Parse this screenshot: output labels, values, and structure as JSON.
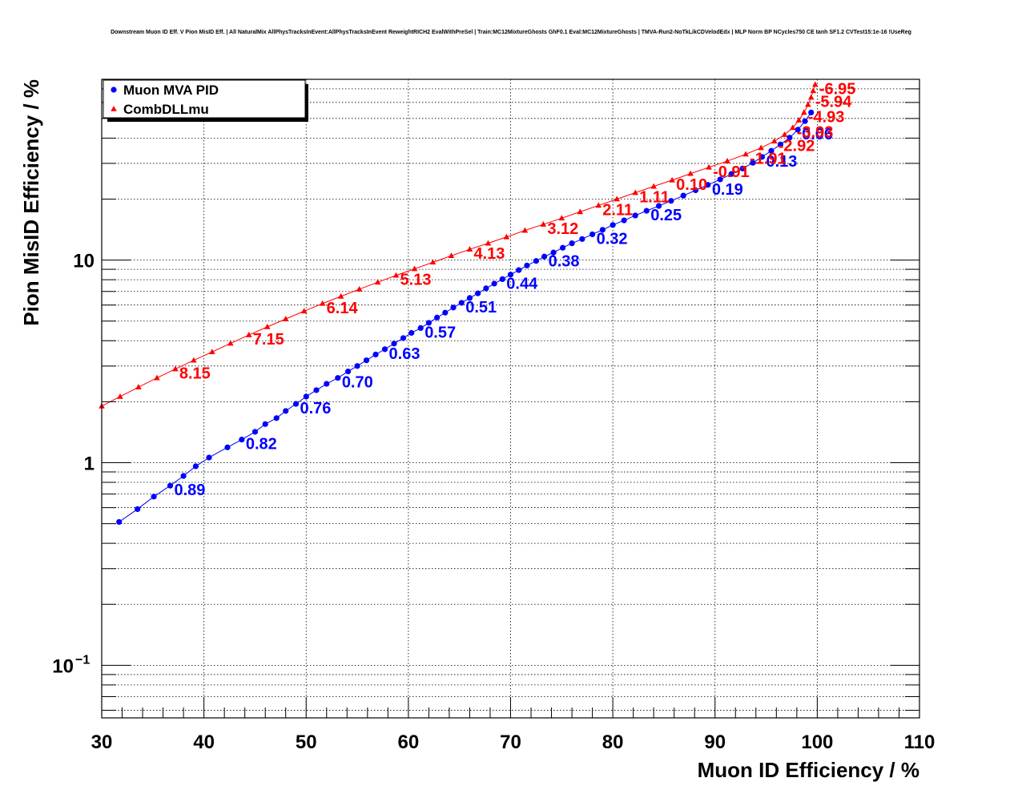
{
  "title": "Downstream Muon ID Eff. V Pion MisID Eff. | All NaturalMix AllPhysTracksInEvent:AllPhysTracksInEvent ReweightRICH2 EvalWithPreSel | Train:MC12MixtureGhosts GhF0.1 Eval:MC12MixtureGhosts | TMVA-Run2-NoTkLikCDVelodEdx | MLP Norm BP NCycles750 CE tanh SF1.2 CVTest15:1e-16 !UseReg",
  "colors": {
    "muon_mva": "#0000ff",
    "combdll": "#ff0000",
    "axis": "#000000"
  },
  "chart_data": {
    "type": "line",
    "xlabel": "Muon ID Efficiency / %",
    "ylabel": "Pion MisID Efficiency / %",
    "xlim": [
      30,
      110
    ],
    "ylim": [
      0.055,
      78
    ],
    "yscale": "log",
    "grid": true,
    "legend_position": "top-left",
    "x_ticks": [
      "30",
      "40",
      "50",
      "60",
      "70",
      "80",
      "90",
      "100",
      "110"
    ],
    "y_ticks": [
      {
        "value": 0.1,
        "base": "10",
        "exp": "−1"
      },
      {
        "value": 1,
        "base": "1",
        "exp": ""
      },
      {
        "value": 10,
        "base": "10",
        "exp": ""
      }
    ],
    "series": [
      {
        "name": "Muon MVA PID",
        "color": "#0000ff",
        "marker": "circle",
        "x": [
          31.7,
          33.5,
          35.1,
          36.7,
          38.0,
          39.2,
          40.5,
          42.3,
          43.7,
          45.0,
          46.0,
          47.1,
          48.0,
          49.0,
          50.0,
          51.0,
          52.0,
          53.1,
          54.1,
          55.0,
          55.9,
          56.8,
          57.7,
          58.6,
          59.5,
          60.3,
          61.2,
          62.0,
          62.8,
          63.6,
          64.4,
          65.2,
          66.0,
          66.8,
          67.6,
          68.4,
          69.2,
          70.0,
          70.8,
          71.6,
          72.5,
          73.3,
          74.2,
          75.1,
          76.0,
          77.0,
          78.0,
          79.0,
          80.0,
          81.1,
          82.2,
          83.3,
          84.5,
          85.7,
          86.9,
          88.1,
          89.3,
          90.5,
          91.6,
          92.7,
          93.7,
          94.6,
          95.5,
          96.4,
          97.3,
          98.1,
          98.8,
          99.4
        ],
        "y": [
          0.51,
          0.59,
          0.68,
          0.77,
          0.86,
          0.96,
          1.06,
          1.19,
          1.3,
          1.42,
          1.55,
          1.66,
          1.8,
          1.95,
          2.12,
          2.28,
          2.45,
          2.62,
          2.82,
          3.0,
          3.2,
          3.42,
          3.63,
          3.87,
          4.12,
          4.37,
          4.62,
          4.9,
          5.2,
          5.5,
          5.83,
          6.15,
          6.5,
          6.85,
          7.25,
          7.65,
          8.05,
          8.48,
          8.92,
          9.4,
          9.9,
          10.4,
          10.9,
          11.5,
          12.1,
          12.7,
          13.4,
          14.1,
          14.9,
          15.7,
          16.6,
          17.5,
          18.5,
          19.6,
          20.8,
          22.1,
          23.5,
          25.0,
          26.6,
          28.3,
          30.2,
          32.3,
          34.6,
          37.2,
          40.2,
          44.0,
          48.5,
          53.5
        ],
        "labels": [
          {
            "text": "0.89",
            "x": 36.7,
            "y": 0.77
          },
          {
            "text": "0.82",
            "x": 43.7,
            "y": 1.3
          },
          {
            "text": "0.76",
            "x": 49.0,
            "y": 1.95
          },
          {
            "text": "0.70",
            "x": 53.1,
            "y": 2.62
          },
          {
            "text": "0.63",
            "x": 57.7,
            "y": 3.63
          },
          {
            "text": "0.57",
            "x": 61.2,
            "y": 4.62
          },
          {
            "text": "0.51",
            "x": 65.2,
            "y": 6.15
          },
          {
            "text": "0.44",
            "x": 69.2,
            "y": 8.05
          },
          {
            "text": "0.38",
            "x": 73.3,
            "y": 10.4
          },
          {
            "text": "0.32",
            "x": 78.0,
            "y": 13.4
          },
          {
            "text": "0.25",
            "x": 83.3,
            "y": 17.5
          },
          {
            "text": "0.19",
            "x": 89.3,
            "y": 23.5
          },
          {
            "text": "0.13",
            "x": 94.6,
            "y": 32.3
          },
          {
            "text": "0.06",
            "x": 98.1,
            "y": 44.0
          }
        ]
      },
      {
        "name": "CombDLLmu",
        "color": "#ff0000",
        "marker": "triangle",
        "x": [
          30.0,
          31.8,
          33.6,
          35.4,
          37.2,
          39.0,
          40.8,
          42.6,
          44.4,
          46.2,
          48.0,
          49.8,
          51.6,
          53.4,
          55.2,
          57.0,
          58.8,
          60.6,
          62.4,
          64.2,
          66.0,
          67.8,
          69.6,
          71.4,
          73.2,
          75.0,
          76.8,
          78.6,
          80.4,
          82.2,
          84.0,
          85.8,
          87.6,
          89.4,
          91.2,
          93.0,
          94.5,
          95.8,
          96.8,
          97.6,
          98.2,
          98.7,
          99.1,
          99.4,
          99.6,
          99.8
        ],
        "y": [
          1.9,
          2.12,
          2.36,
          2.62,
          2.9,
          3.2,
          3.52,
          3.88,
          4.27,
          4.68,
          5.12,
          5.6,
          6.1,
          6.62,
          7.18,
          7.77,
          8.4,
          9.05,
          9.75,
          10.5,
          11.3,
          12.1,
          13.0,
          14.0,
          15.0,
          16.1,
          17.3,
          18.6,
          20.0,
          21.5,
          23.1,
          24.8,
          26.7,
          28.7,
          30.8,
          33.3,
          35.8,
          38.6,
          41.6,
          45.0,
          49.0,
          53.5,
          58.5,
          63.5,
          68.5,
          73.5
        ],
        "labels": [
          {
            "text": "8.15",
            "x": 37.2,
            "y": 2.9
          },
          {
            "text": "7.15",
            "x": 44.4,
            "y": 4.27
          },
          {
            "text": "6.14",
            "x": 51.6,
            "y": 6.1
          },
          {
            "text": "5.13",
            "x": 58.8,
            "y": 8.4
          },
          {
            "text": "4.13",
            "x": 66.0,
            "y": 11.3
          },
          {
            "text": "3.12",
            "x": 73.2,
            "y": 15.0
          },
          {
            "text": "2.11",
            "x": 78.6,
            "y": 18.6
          },
          {
            "text": "1.11",
            "x": 82.2,
            "y": 21.5
          },
          {
            "text": "0.10",
            "x": 85.8,
            "y": 24.8
          },
          {
            "text": "-0.91",
            "x": 89.4,
            "y": 28.7
          },
          {
            "text": "-1.91",
            "x": 93.0,
            "y": 33.3
          },
          {
            "text": "-2.92",
            "x": 95.8,
            "y": 38.6
          },
          {
            "text": "-3.93",
            "x": 97.6,
            "y": 45.0
          },
          {
            "text": "-4.93",
            "x": 98.7,
            "y": 53.5
          },
          {
            "text": "-5.94",
            "x": 99.4,
            "y": 63.5
          },
          {
            "text": "-6.95",
            "x": 99.8,
            "y": 73.5
          }
        ]
      }
    ]
  }
}
